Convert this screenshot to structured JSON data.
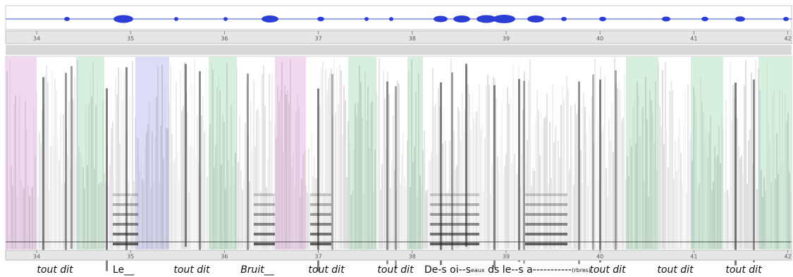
{
  "top_ruler": {
    "ticks": [
      "34",
      "35",
      "36",
      "37",
      "38",
      "39",
      "40",
      "41",
      "42"
    ]
  },
  "bottom_ruler": {
    "ticks": [
      "34",
      "35",
      "36",
      "37",
      "38",
      "39",
      "40",
      "41",
      "42"
    ]
  },
  "annotations": [
    {
      "text": "tout dit",
      "style": "italic"
    },
    {
      "text": "Le__",
      "style": "normal"
    },
    {
      "text": "tout dit",
      "style": "italic"
    },
    {
      "text": "Bruit__",
      "style": "italic"
    },
    {
      "text": "tout dit",
      "style": "italic"
    },
    {
      "text": "tout dit",
      "style": "italic"
    },
    {
      "text": "De-s oi--s",
      "style": "normal"
    },
    {
      "text": "eaux",
      "style": "small"
    },
    {
      "text": " ds le--s a-----------",
      "style": "normal"
    },
    {
      "text": "(rbres)",
      "style": "small"
    },
    {
      "text": "tout dit",
      "style": "italic"
    },
    {
      "text": "tout dit",
      "style": "italic"
    },
    {
      "text": "tout dit",
      "style": "italic"
    }
  ]
}
